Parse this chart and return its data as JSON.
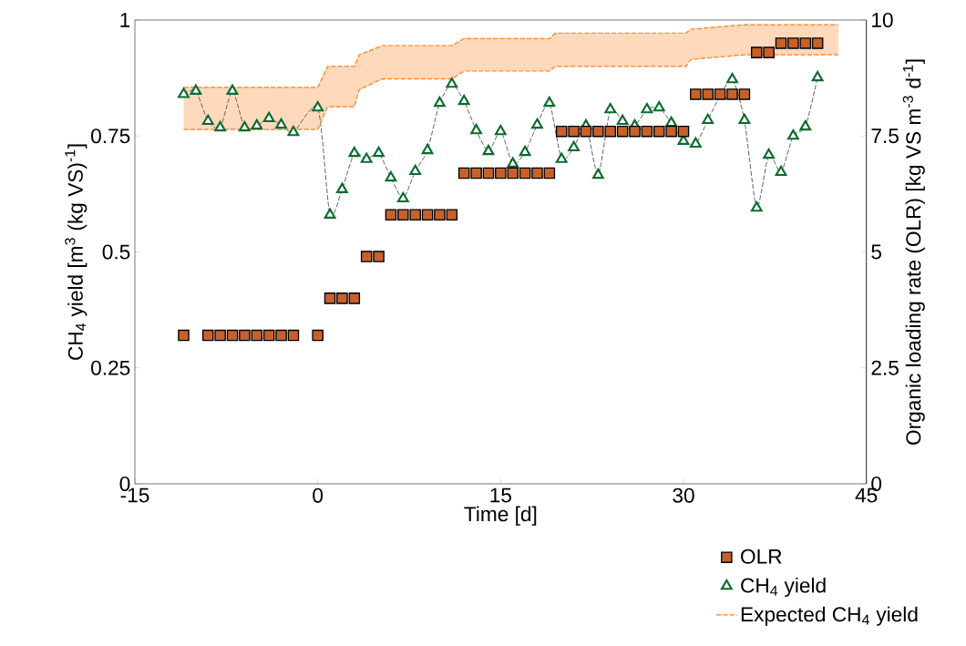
{
  "chart_data": {
    "type": "line",
    "xlabel": "Time [d]",
    "ylabel": "CH$_{4}$ yield [m$^{3}$ (kg VS)$^{-1}$]",
    "y2label": "Organic loading rate (OLR) [kg VS m$^{-3}$ d$^{-1}$]",
    "xlim": [
      -15,
      45
    ],
    "xticks": [
      -15,
      0,
      15,
      30,
      45
    ],
    "ylim": [
      0,
      1
    ],
    "yticks": [
      0,
      0.25,
      0.5,
      0.75,
      1
    ],
    "y2lim": [
      0,
      10
    ],
    "y2ticks": [
      0,
      2.5,
      5,
      7.5,
      10
    ],
    "legend": "bottom right",
    "series": [
      {
        "name": "OLR",
        "type": "scatter",
        "axis": "y2",
        "marker": "square",
        "color": "#c8602a",
        "x": [
          -11,
          -9,
          -8,
          -7,
          -6,
          -5,
          -4,
          -3,
          -2,
          0,
          1,
          2,
          3,
          4,
          5,
          6,
          7,
          8,
          9,
          10,
          11,
          12,
          13,
          14,
          15,
          16,
          17,
          18,
          19,
          20,
          21,
          22,
          23,
          24,
          25,
          26,
          27,
          28,
          29,
          30,
          31,
          32,
          33,
          34,
          35,
          36,
          37,
          38,
          39,
          40,
          41
        ],
        "values": [
          3.2,
          3.2,
          3.2,
          3.2,
          3.2,
          3.2,
          3.2,
          3.2,
          3.2,
          3.2,
          4.0,
          4.0,
          4.0,
          4.9,
          4.9,
          5.8,
          5.8,
          5.8,
          5.8,
          5.8,
          5.8,
          6.7,
          6.7,
          6.7,
          6.7,
          6.7,
          6.7,
          6.7,
          6.7,
          7.6,
          7.6,
          7.6,
          7.6,
          7.6,
          7.6,
          7.6,
          7.6,
          7.6,
          7.6,
          7.6,
          8.4,
          8.4,
          8.4,
          8.4,
          8.4,
          9.3,
          9.3,
          9.5,
          9.5,
          9.5,
          9.5
        ]
      },
      {
        "name": "CH$_{4}$ yield",
        "type": "line",
        "marker": "triangle",
        "line_style": "dashed",
        "color": "#0b6b2e",
        "x": [
          -11,
          -10,
          -9,
          -8,
          -7,
          -6,
          -5,
          -4,
          -3,
          -2,
          0,
          1,
          2,
          3,
          4,
          5,
          6,
          7,
          8,
          9,
          10,
          11,
          12,
          13,
          14,
          15,
          16,
          17,
          18,
          19,
          20,
          21,
          22,
          23,
          24,
          25,
          26,
          27,
          28,
          29,
          30,
          31,
          32,
          33,
          34,
          35,
          36,
          37,
          38,
          39,
          40,
          41
        ],
        "values": [
          0.84,
          0.847,
          0.782,
          0.768,
          0.847,
          0.768,
          0.772,
          0.788,
          0.774,
          0.758,
          0.811,
          0.58,
          0.635,
          0.713,
          0.7,
          0.713,
          0.66,
          0.615,
          0.674,
          0.719,
          0.821,
          0.862,
          0.825,
          0.762,
          0.717,
          0.76,
          0.69,
          0.715,
          0.774,
          0.821,
          0.7,
          0.725,
          0.772,
          0.666,
          0.807,
          0.782,
          0.772,
          0.807,
          0.811,
          0.778,
          0.739,
          0.733,
          0.784,
          0.837,
          0.872,
          0.784,
          0.595,
          0.709,
          0.672,
          0.75,
          0.77,
          0.876
        ]
      },
      {
        "name": "Expected CH$_{4}$ yield",
        "line_style": "dashed",
        "color": "#ff7f1e",
        "x": [
          -11,
          0,
          0.8,
          3,
          3.4,
          5.3,
          11,
          12,
          19,
          19.5,
          30.2,
          30.6,
          35,
          42.7
        ],
        "values": [
          0.855,
          0.855,
          0.9,
          0.9,
          0.925,
          0.945,
          0.945,
          0.96,
          0.96,
          0.972,
          0.972,
          0.98,
          0.99,
          0.99
        ],
        "lower": [
          0.764,
          0.764,
          0.813,
          0.813,
          0.85,
          0.873,
          0.873,
          0.89,
          0.89,
          0.9,
          0.9,
          0.915,
          0.925,
          0.925
        ],
        "upper": [
          0.855,
          0.855,
          0.9,
          0.9,
          0.925,
          0.945,
          0.945,
          0.96,
          0.96,
          0.972,
          0.972,
          0.98,
          0.99,
          0.99
        ]
      },
      {
        "type": "line",
        "line_style": "dashed",
        "color": "#ff7f1e",
        "x": [
          -11,
          0,
          0.8,
          3,
          3.4,
          5.3,
          11,
          12,
          19,
          19.5,
          30.2,
          30.6,
          35,
          42.7
        ],
        "values": [
          0.764,
          0.764,
          0.813,
          0.813,
          0.85,
          0.873,
          0.873,
          0.89,
          0.89,
          0.9,
          0.9,
          0.915,
          0.925,
          0.925
        ]
      }
    ]
  }
}
